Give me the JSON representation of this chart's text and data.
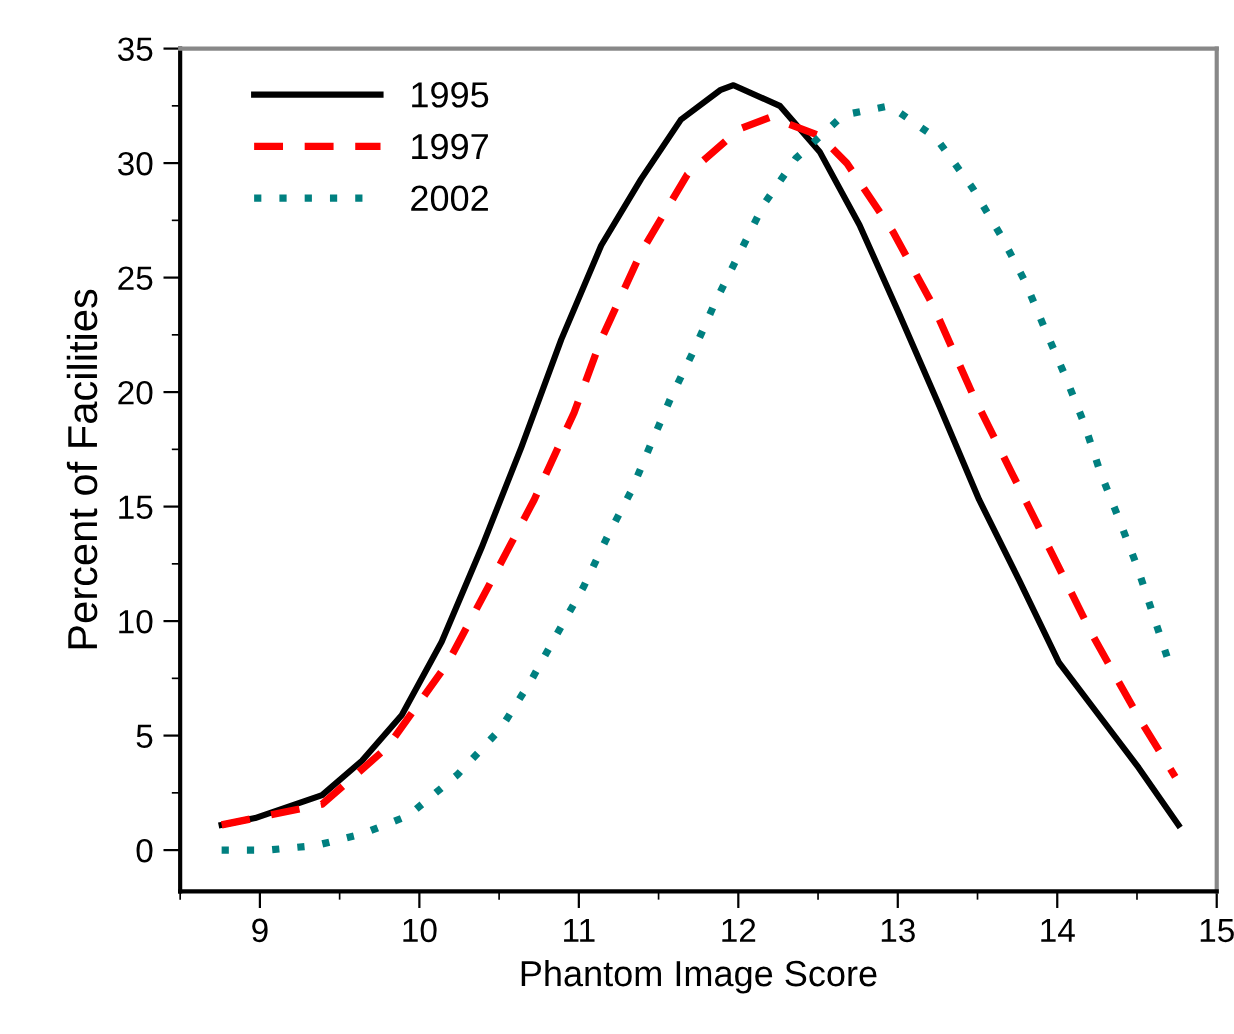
{
  "chart_data": {
    "type": "line",
    "xlabel": "Phantom Image Score",
    "ylabel": "Percent of Facilities",
    "xlim": [
      8.5,
      15
    ],
    "xticks": [
      9,
      10,
      11,
      12,
      13,
      14,
      15
    ],
    "ylim": [
      -1.8,
      35
    ],
    "yticks": [
      0,
      5,
      10,
      15,
      20,
      25,
      30,
      35
    ],
    "grid": false,
    "legend": "top left",
    "marker": "none",
    "series": [
      {
        "name": "1995",
        "color": "#000000",
        "line_style": "solid",
        "x": [
          8.76,
          8.97,
          9.39,
          9.64,
          9.89,
          10.14,
          10.39,
          10.64,
          10.89,
          11.14,
          11.39,
          11.64,
          11.89,
          11.97,
          12.26,
          12.51,
          12.76,
          13.01,
          13.26,
          13.51,
          13.76,
          14.01,
          14.26,
          14.51,
          14.76
        ],
        "values": [
          1.1,
          1.4,
          2.4,
          3.9,
          5.9,
          9.1,
          13.2,
          17.6,
          22.3,
          26.4,
          29.3,
          31.9,
          33.2,
          33.4,
          32.5,
          30.5,
          27.3,
          23.4,
          19.4,
          15.3,
          11.8,
          8.2,
          5.9,
          3.6,
          1.1
        ]
      },
      {
        "name": "1997",
        "color": "#ff0000",
        "line_style": "dashed",
        "x": [
          8.76,
          9.39,
          9.8,
          10.18,
          10.47,
          10.72,
          10.97,
          11.14,
          11.39,
          11.68,
          12.01,
          12.2,
          12.51,
          12.68,
          12.97,
          13.22,
          13.47,
          13.72,
          13.97,
          14.22,
          14.51,
          14.74
        ],
        "values": [
          1.1,
          2.0,
          4.5,
          8.2,
          12.0,
          15.3,
          19.1,
          22.3,
          26.1,
          29.5,
          31.5,
          32.0,
          31.2,
          30.0,
          27.0,
          23.8,
          19.9,
          16.4,
          12.9,
          9.4,
          5.8,
          3.2
        ]
      },
      {
        "name": "2002",
        "color": "#008080",
        "line_style": "dotted",
        "x": [
          8.76,
          9.05,
          9.35,
          9.64,
          9.93,
          10.24,
          10.51,
          10.7,
          10.86,
          11.03,
          11.18,
          11.33,
          11.45,
          11.58,
          11.72,
          11.86,
          12.01,
          12.16,
          12.36,
          12.66,
          12.95,
          13.24,
          13.47,
          13.65,
          13.8,
          13.92,
          14.05,
          14.17,
          14.27,
          14.39,
          14.5,
          14.6,
          14.7
        ],
        "values": [
          0,
          0,
          0.2,
          0.7,
          1.5,
          3.3,
          5.3,
          7.4,
          9.4,
          11.5,
          13.7,
          15.7,
          17.7,
          19.8,
          21.8,
          24.0,
          26.1,
          28.2,
          30.2,
          32.1,
          32.5,
          31.1,
          28.9,
          26.8,
          24.8,
          22.8,
          20.7,
          18.6,
          16.5,
          14.4,
          12.4,
          10.3,
          8.2
        ]
      }
    ]
  }
}
